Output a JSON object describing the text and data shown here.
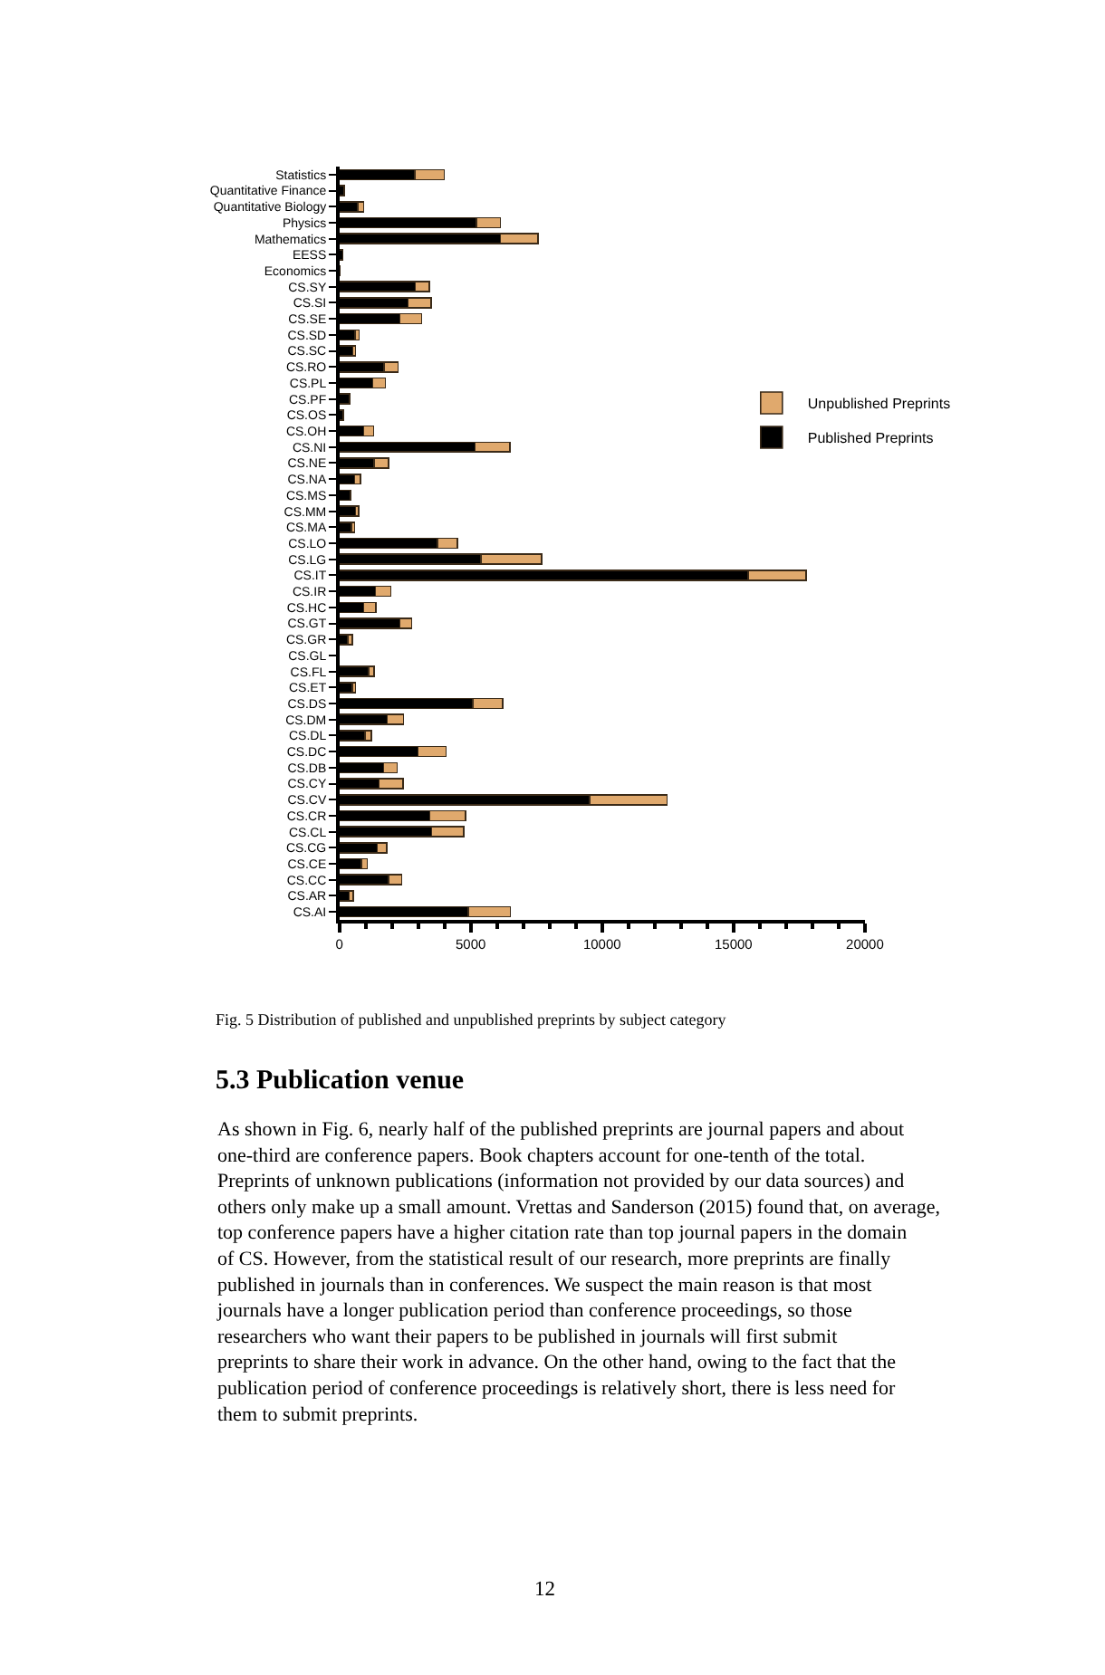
{
  "chart_data": {
    "type": "bar",
    "orientation": "horizontal",
    "stacked": true,
    "categories": [
      "Statistics",
      "Quantitative Finance",
      "Quantitative Biology",
      "Physics",
      "Mathematics",
      "EESS",
      "Economics",
      "CS.SY",
      "CS.SI",
      "CS.SE",
      "CS.SD",
      "CS.SC",
      "CS.RO",
      "CS.PL",
      "CS.PF",
      "CS.OS",
      "CS.OH",
      "CS.NI",
      "CS.NE",
      "CS.NA",
      "CS.MS",
      "CS.MM",
      "CS.MA",
      "CS.LO",
      "CS.LG",
      "CS.IT",
      "CS.IR",
      "CS.HC",
      "CS.GT",
      "CS.GR",
      "CS.GL",
      "CS.FL",
      "CS.ET",
      "CS.DS",
      "CS.DM",
      "CS.DL",
      "CS.DC",
      "CS.DB",
      "CS.CY",
      "CS.CV",
      "CS.CR",
      "CS.CL",
      "CS.CG",
      "CS.CE",
      "CS.CC",
      "CS.AR",
      "CS.AI"
    ],
    "series": [
      {
        "name": "Published Preprints",
        "color": "#000000",
        "values": [
          2870,
          180,
          710,
          5220,
          6130,
          130,
          30,
          2890,
          2620,
          2310,
          600,
          510,
          1710,
          1270,
          400,
          160,
          930,
          5160,
          1330,
          580,
          420,
          620,
          470,
          3730,
          5400,
          15560,
          1380,
          930,
          2310,
          330,
          0,
          1110,
          490,
          5090,
          1820,
          980,
          3000,
          1690,
          1510,
          9530,
          3440,
          3510,
          1440,
          840,
          1870,
          380,
          4910
        ]
      },
      {
        "name": "Unpublished Preprints",
        "color": "#e0a96d",
        "values": [
          1130,
          0,
          220,
          910,
          1430,
          0,
          0,
          530,
          870,
          820,
          160,
          110,
          530,
          490,
          0,
          0,
          380,
          1330,
          540,
          220,
          0,
          110,
          110,
          760,
          2310,
          2210,
          580,
          470,
          450,
          160,
          0,
          220,
          130,
          1130,
          620,
          240,
          1070,
          510,
          910,
          2940,
          1360,
          1220,
          360,
          230,
          510,
          150,
          1600
        ]
      }
    ],
    "xlim": [
      0,
      20000
    ],
    "xticks": [
      0,
      5000,
      10000,
      15000,
      20000
    ],
    "legend": "top right",
    "annotations": [
      "Fig. 5 Distribution of published and unpublished preprints by subject category",
      "5.3 Publication venue",
      "As shown in Fig. 6, nearly half of the published preprints are journal papers and about one-third are conference papers. Book chapters account for one-tenth of the total. Preprints of unknown publications (information not provided by our data sources) and others only make up a small amount. Vrettas and Sanderson (2015) found that, on average, top conference papers have a higher citation rate than top journal papers in the domain of CS. However, from the statistical result of our research, more preprints are finally published in journals than in conferences. We suspect the main reason is that most journals have a longer publication period than conference proceedings, so those researchers who want their papers to be published in journals will first submit preprints to share their work in advance. On the other hand, owing to the fact that the publication period of conference proceedings is relatively short, there is less need for them to submit preprints.",
      "12"
    ]
  }
}
